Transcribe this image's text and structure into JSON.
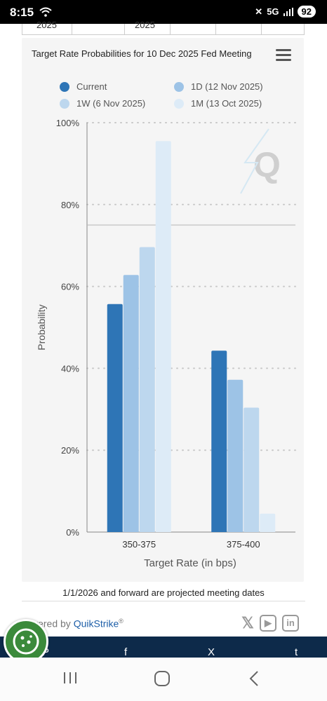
{
  "status_bar": {
    "time": "8:15",
    "network": "5G",
    "battery": "92"
  },
  "top_table": {
    "cells": [
      "2025",
      "2025"
    ]
  },
  "chart_data": {
    "type": "bar",
    "title": "Target Rate Probabilities for 10 Dec 2025 Fed Meeting",
    "xlabel": "Target Rate (in bps)",
    "ylabel": "Probability",
    "categories": [
      "350-375",
      "375-400"
    ],
    "ylim": [
      0,
      100
    ],
    "yticks": [
      0,
      20,
      40,
      60,
      80,
      100
    ],
    "ytick_suffix": "%",
    "grid": true,
    "legend_position": "top",
    "reference_line": 75,
    "series": [
      {
        "name": "Current",
        "values": [
          55.7,
          44.3
        ],
        "color": "#2e75b6"
      },
      {
        "name": "1D (12 Nov 2025)",
        "values": [
          62.8,
          37.2
        ],
        "color": "#9dc3e6"
      },
      {
        "name": "1W (6 Nov 2025)",
        "values": [
          69.6,
          30.4
        ],
        "color": "#bdd7ee"
      },
      {
        "name": "1M (13 Oct 2025)",
        "values": [
          95.5,
          4.5
        ],
        "color": "#ddebf7"
      }
    ]
  },
  "footnote": "1/1/2026 and forward are projected meeting dates",
  "footer": {
    "powered_prefix": "wered by ",
    "powered_brand": "QuikStrike",
    "powered_mark": "®"
  },
  "social_icons": [
    "x-icon",
    "youtube-icon",
    "linkedin-icon"
  ],
  "share_bar": {
    "items": [
      "P",
      "f",
      "X",
      "t"
    ]
  }
}
